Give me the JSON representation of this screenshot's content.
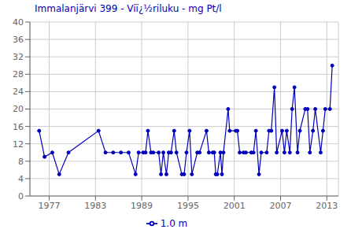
{
  "chart_data": {
    "type": "line",
    "title": "Immalanjärvi 399 - Viï¿½riluku - mg Pt/l",
    "x": [
      1975.7,
      1976.4,
      1977.4,
      1978.3,
      1979.5,
      1983.4,
      1984.3,
      1985.3,
      1986.3,
      1987.3,
      1988.2,
      1988.6,
      1989.2,
      1989.5,
      1989.8,
      1990.2,
      1990.5,
      1991.2,
      1991.5,
      1991.8,
      1992.2,
      1992.5,
      1992.8,
      1993.2,
      1993.5,
      1994.2,
      1994.5,
      1994.8,
      1995.2,
      1995.5,
      1996.2,
      1996.5,
      1997.4,
      1997.7,
      1998.2,
      1998.4,
      1998.6,
      1998.8,
      1999.2,
      1999.4,
      1999.6,
      2000.2,
      2000.4,
      2001.2,
      2001.4,
      2001.7,
      2002.2,
      2002.5,
      2003.2,
      2003.5,
      2003.8,
      2004.2,
      2004.5,
      2005.2,
      2005.5,
      2005.8,
      2006.2,
      2006.5,
      2007.2,
      2007.5,
      2007.8,
      2008.2,
      2008.5,
      2008.8,
      2009.2,
      2009.5,
      2010.2,
      2010.5,
      2010.8,
      2011.2,
      2011.5,
      2012.2,
      2012.5,
      2012.8,
      2013.4,
      2013.7
    ],
    "series": [
      {
        "name": "1.0 m",
        "color": "#0000bb",
        "marker": "circle",
        "values": [
          15,
          9,
          10,
          5,
          10,
          15,
          10,
          10,
          10,
          10,
          5,
          10,
          10,
          10,
          15,
          10,
          10,
          10,
          5,
          10,
          5,
          10,
          10,
          15,
          10,
          5,
          5,
          10,
          15,
          5,
          10,
          10,
          15,
          10,
          10,
          10,
          5,
          5,
          10,
          5,
          10,
          20,
          15,
          15,
          15,
          10,
          10,
          10,
          10,
          10,
          15,
          5,
          10,
          10,
          15,
          15,
          25,
          10,
          15,
          10,
          15,
          10,
          20,
          25,
          10,
          15,
          20,
          20,
          10,
          15,
          20,
          10,
          15,
          20,
          20,
          30
        ]
      }
    ],
    "xlim": [
      1974.5,
      2014.5
    ],
    "ylim": [
      0,
      40
    ],
    "xticks": [
      1977,
      1983,
      1989,
      1995,
      2001,
      2007,
      2013
    ],
    "yticks": [
      0,
      4,
      8,
      12,
      16,
      20,
      24,
      28,
      32,
      36,
      40
    ],
    "grid": true,
    "legend": "bottom"
  }
}
